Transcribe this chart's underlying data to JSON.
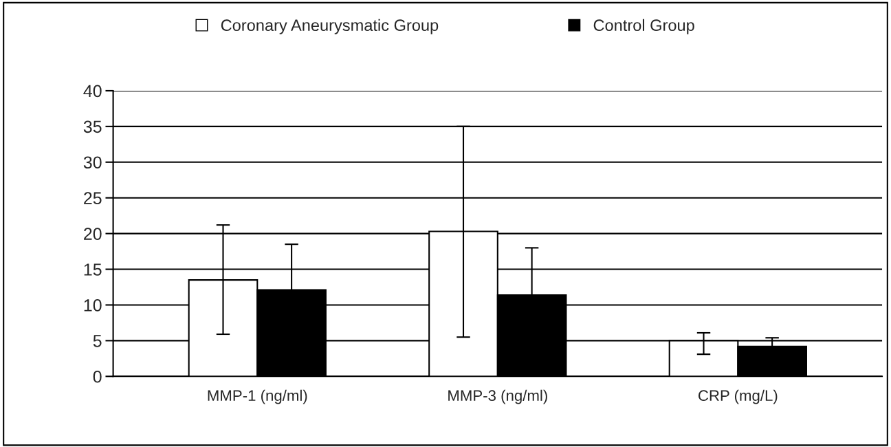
{
  "chart_data": {
    "type": "bar",
    "categories": [
      "MMP-1 (ng/ml)",
      "MMP-3 (ng/ml)",
      "CRP (mg/L)"
    ],
    "series": [
      {
        "name": "Coronary Aneurysmatic Group",
        "color": "#ffffff",
        "values": [
          13.5,
          20.3,
          5.0
        ],
        "errors": [
          [
            5.9,
            21.2
          ],
          [
            5.5,
            35.0
          ],
          [
            3.1,
            6.1
          ]
        ]
      },
      {
        "name": "Control Group",
        "color": "#000000",
        "values": [
          12.1,
          11.4,
          4.2
        ],
        "errors": [
          6.4,
          6.6,
          1.2
        ]
      }
    ],
    "ylim": [
      0,
      40
    ],
    "yticks": [
      0,
      5,
      10,
      15,
      20,
      25,
      30,
      35,
      40
    ],
    "grid": "y",
    "legend": "top"
  }
}
